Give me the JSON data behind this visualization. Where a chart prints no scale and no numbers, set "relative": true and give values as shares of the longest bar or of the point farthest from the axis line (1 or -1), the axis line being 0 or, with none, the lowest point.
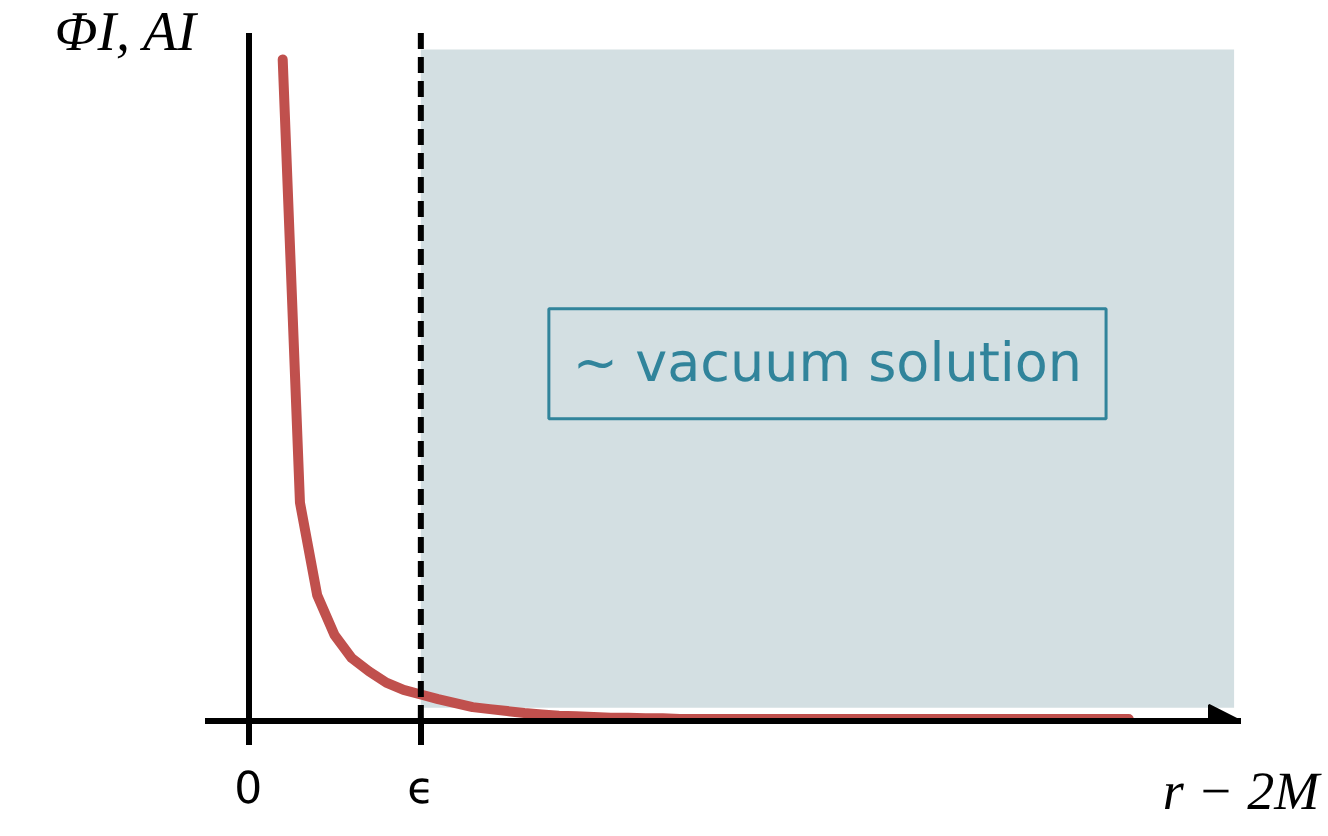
{
  "chart_data": {
    "type": "line",
    "ylabel": "ΦI, AI",
    "xlabel": "r − 2M",
    "relative": true,
    "categories": [
      "0",
      null,
      null,
      null,
      null,
      null,
      null,
      null,
      null,
      null,
      "ϵ",
      null,
      null,
      null,
      null,
      null,
      null,
      null,
      null,
      null,
      null,
      null,
      null,
      null,
      null,
      null,
      null,
      null,
      null,
      null,
      null,
      null,
      null,
      null,
      null,
      null,
      null,
      null,
      null,
      null,
      null,
      null,
      null,
      null,
      null,
      null,
      null,
      null,
      null,
      null,
      null,
      null,
      null,
      null,
      null,
      null,
      null,
      null
    ],
    "series": [
      {
        "color": "#c0504d",
        "values": [
          null,
          null,
          1.0,
          0.33,
          0.19,
          0.13,
          0.095,
          0.075,
          0.058,
          0.047,
          0.04,
          0.033,
          0.027,
          0.021,
          0.018,
          0.015,
          0.012,
          0.01,
          0.008,
          0.007,
          0.006,
          0.005,
          0.005,
          0.004,
          0.004,
          0.003,
          0.003,
          0.003,
          0.003,
          0.003,
          0.003,
          0.003,
          0.003,
          0.003,
          0.003,
          0.003,
          0.003,
          0.003,
          0.003,
          0.003,
          0.003,
          0.003,
          0.003,
          0.003,
          0.003,
          0.003,
          0.003,
          0.003,
          0.003,
          0.003,
          0.003,
          0.003,
          null,
          null,
          null,
          null,
          null,
          null
        ]
      }
    ],
    "ref_lines": [
      {
        "axis": "x",
        "value": "ϵ",
        "color": "#000000",
        "line_style": "dashed"
      }
    ],
    "annotations": [
      "∼ vacuum solution"
    ],
    "line_style": "solid"
  }
}
